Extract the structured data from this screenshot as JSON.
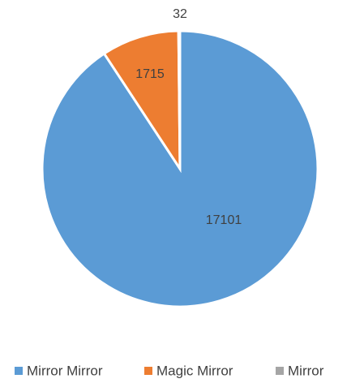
{
  "chart_data": {
    "type": "pie",
    "categories": [
      "Mirror Mirror",
      "Magic Mirror",
      "Mirror"
    ],
    "values": [
      17101,
      1715,
      32
    ],
    "colors": [
      "#5b9bd5",
      "#ed7d31",
      "#a5a5a5"
    ],
    "legend": "bottom"
  }
}
